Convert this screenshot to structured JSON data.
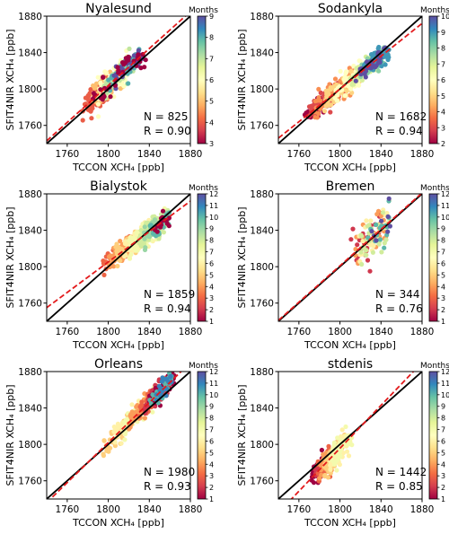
{
  "figure": {
    "colorbar_title": "Months",
    "colormap": "Spectral",
    "identity_line_color": "#000000",
    "regression_line_color": "#e31a1c"
  },
  "chart_data": [
    {
      "type": "scatter",
      "title": "Nyalesund",
      "xlabel": "TCCON XCH₄ [ppb]",
      "ylabel": "SFIT4NIR  XCH₄ [ppb]",
      "xlim": [
        1740,
        1880
      ],
      "ylim": [
        1740,
        1880
      ],
      "xticks": [
        "1760",
        "1800",
        "1840",
        "1880"
      ],
      "yticks": [
        "1760",
        "1800",
        "1840",
        "1880"
      ],
      "stats": {
        "n": "N = 825",
        "r": "R = 0.90"
      },
      "colorbar": {
        "min": 3,
        "max": 9,
        "ticks": [
          "3",
          "4",
          "5",
          "6",
          "7",
          "8",
          "9"
        ]
      },
      "regression": {
        "x": [
          1740,
          1880
        ],
        "y": [
          1743,
          1885
        ]
      },
      "clusters": [
        {
          "month": 4,
          "count": 70,
          "x0": 1775,
          "x1": 1800,
          "spread": 8
        },
        {
          "month": 5,
          "count": 90,
          "x0": 1785,
          "x1": 1815,
          "spread": 7
        },
        {
          "month": 6,
          "count": 120,
          "x0": 1790,
          "x1": 1820,
          "spread": 7
        },
        {
          "month": 7,
          "count": 40,
          "x0": 1795,
          "x1": 1825,
          "spread": 7
        },
        {
          "month": 8,
          "count": 40,
          "x0": 1800,
          "x1": 1832,
          "spread": 6
        },
        {
          "month": 9,
          "count": 30,
          "x0": 1805,
          "x1": 1835,
          "spread": 6
        },
        {
          "month": 3,
          "count": 40,
          "x0": 1785,
          "x1": 1838,
          "spread": 6
        }
      ]
    },
    {
      "type": "scatter",
      "title": "Sodankyla",
      "xlabel": "TCCON XCH₄ [ppb]",
      "ylabel": "SFIT4NIR XCH₄ [ppb]",
      "xlim": [
        1740,
        1880
      ],
      "ylim": [
        1740,
        1880
      ],
      "xticks": [
        "1760",
        "1800",
        "1840",
        "1880"
      ],
      "yticks": [
        "1760",
        "1800",
        "1840",
        "1880"
      ],
      "stats": {
        "n": "N = 1682",
        "r": "R = 0.94"
      },
      "colorbar": {
        "min": 2,
        "max": 10,
        "ticks": [
          "2",
          "3",
          "4",
          "5",
          "6",
          "7",
          "8",
          "9",
          "10"
        ]
      },
      "regression": {
        "x": [
          1740,
          1880
        ],
        "y": [
          1746,
          1872
        ]
      },
      "clusters": [
        {
          "month": 2,
          "count": 50,
          "x0": 1765,
          "x1": 1800,
          "spread": 6
        },
        {
          "month": 3,
          "count": 70,
          "x0": 1770,
          "x1": 1805,
          "spread": 6
        },
        {
          "month": 4,
          "count": 80,
          "x0": 1775,
          "x1": 1815,
          "spread": 6
        },
        {
          "month": 5,
          "count": 80,
          "x0": 1785,
          "x1": 1820,
          "spread": 6
        },
        {
          "month": 6,
          "count": 70,
          "x0": 1795,
          "x1": 1825,
          "spread": 6
        },
        {
          "month": 7,
          "count": 60,
          "x0": 1810,
          "x1": 1835,
          "spread": 5
        },
        {
          "month": 8,
          "count": 70,
          "x0": 1820,
          "x1": 1845,
          "spread": 5
        },
        {
          "month": 9,
          "count": 60,
          "x0": 1820,
          "x1": 1848,
          "spread": 5
        },
        {
          "month": 10,
          "count": 30,
          "x0": 1815,
          "x1": 1845,
          "spread": 5
        }
      ]
    },
    {
      "type": "scatter",
      "title": "Bialystok",
      "xlabel": "TCCON XCH₄ [ppb]",
      "ylabel": "SFIT4NIR  XCH₄ [ppb]",
      "xlim": [
        1740,
        1880
      ],
      "ylim": [
        1740,
        1880
      ],
      "xticks": [
        "1760",
        "1800",
        "1840",
        "1880"
      ],
      "yticks": [
        "1760",
        "1800",
        "1840",
        "1880"
      ],
      "stats": {
        "n": "N = 1859",
        "r": "R = 0.94"
      },
      "colorbar": {
        "min": 1,
        "max": 12,
        "ticks": [
          "1",
          "2",
          "3",
          "4",
          "5",
          "6",
          "7",
          "8",
          "9",
          "10",
          "11",
          "12"
        ]
      },
      "regression": {
        "x": [
          1740,
          1880
        ],
        "y": [
          1755,
          1872
        ]
      },
      "clusters": [
        {
          "month": 3,
          "count": 50,
          "x0": 1795,
          "x1": 1825,
          "spread": 6
        },
        {
          "month": 4,
          "count": 60,
          "x0": 1800,
          "x1": 1830,
          "spread": 6
        },
        {
          "month": 5,
          "count": 60,
          "x0": 1805,
          "x1": 1835,
          "spread": 6
        },
        {
          "month": 6,
          "count": 80,
          "x0": 1815,
          "x1": 1845,
          "spread": 6
        },
        {
          "month": 7,
          "count": 90,
          "x0": 1820,
          "x1": 1855,
          "spread": 6
        },
        {
          "month": 8,
          "count": 80,
          "x0": 1830,
          "x1": 1858,
          "spread": 6
        },
        {
          "month": 9,
          "count": 40,
          "x0": 1835,
          "x1": 1860,
          "spread": 5
        },
        {
          "month": 10,
          "count": 25,
          "x0": 1840,
          "x1": 1860,
          "spread": 5
        },
        {
          "month": 1,
          "count": 15,
          "x0": 1845,
          "x1": 1860,
          "spread": 6
        }
      ]
    },
    {
      "type": "scatter",
      "title": "Bremen",
      "xlabel": "TCCON XCH₄ [ppb]",
      "ylabel": "SFIT4NIR XCH₄ [ppb]",
      "xlim": [
        1740,
        1880
      ],
      "ylim": [
        1740,
        1880
      ],
      "xticks": [
        "1760",
        "1800",
        "1840",
        "1880"
      ],
      "yticks": [
        "1760",
        "1800",
        "1840",
        "1880"
      ],
      "stats": {
        "n": "N = 344",
        "r": "R = 0.76"
      },
      "colorbar": {
        "min": 1,
        "max": 12,
        "ticks": [
          "1",
          "2",
          "3",
          "4",
          "5",
          "6",
          "7",
          "8",
          "9",
          "10",
          "11",
          "12"
        ]
      },
      "regression": {
        "x": [
          1740,
          1880
        ],
        "y": [
          1741,
          1881
        ]
      },
      "clusters": [
        {
          "month": 2,
          "count": 25,
          "x0": 1810,
          "x1": 1840,
          "spread": 12
        },
        {
          "month": 4,
          "count": 30,
          "x0": 1815,
          "x1": 1845,
          "spread": 12
        },
        {
          "month": 6,
          "count": 30,
          "x0": 1818,
          "x1": 1848,
          "spread": 12
        },
        {
          "month": 8,
          "count": 30,
          "x0": 1820,
          "x1": 1848,
          "spread": 12
        },
        {
          "month": 10,
          "count": 15,
          "x0": 1825,
          "x1": 1850,
          "spread": 10
        },
        {
          "month": 12,
          "count": 8,
          "x0": 1830,
          "x1": 1850,
          "spread": 10
        }
      ]
    },
    {
      "type": "scatter",
      "title": "Orleans",
      "xlabel": "TCCON XCH₄ [ppb]",
      "ylabel": "SFIT4NIR  XCH₄ [ppb]",
      "xlim": [
        1740,
        1880
      ],
      "ylim": [
        1740,
        1880
      ],
      "xticks": [
        "1760",
        "1800",
        "1840",
        "1880"
      ],
      "yticks": [
        "1760",
        "1800",
        "1840",
        "1880"
      ],
      "stats": {
        "n": "N = 1980",
        "r": "R = 0.93"
      },
      "colorbar": {
        "min": 1,
        "max": 12,
        "ticks": [
          "1",
          "2",
          "3",
          "4",
          "5",
          "6",
          "7",
          "8",
          "9",
          "10",
          "11",
          "12"
        ]
      },
      "regression": {
        "x": [
          1740,
          1880
        ],
        "y": [
          1736,
          1890
        ]
      },
      "clusters": [
        {
          "month": 5,
          "count": 40,
          "x0": 1795,
          "x1": 1825,
          "spread": 6
        },
        {
          "month": 6,
          "count": 60,
          "x0": 1805,
          "x1": 1835,
          "spread": 6
        },
        {
          "month": 7,
          "count": 60,
          "x0": 1815,
          "x1": 1845,
          "spread": 6
        },
        {
          "month": 4,
          "count": 60,
          "x0": 1820,
          "x1": 1850,
          "spread": 6
        },
        {
          "month": 3,
          "count": 70,
          "x0": 1830,
          "x1": 1858,
          "spread": 6
        },
        {
          "month": 2,
          "count": 60,
          "x0": 1835,
          "x1": 1862,
          "spread": 6
        },
        {
          "month": 1,
          "count": 40,
          "x0": 1840,
          "x1": 1865,
          "spread": 5
        },
        {
          "month": 10,
          "count": 30,
          "x0": 1840,
          "x1": 1862,
          "spread": 5
        },
        {
          "month": 11,
          "count": 20,
          "x0": 1845,
          "x1": 1862,
          "spread": 5
        }
      ]
    },
    {
      "type": "scatter",
      "title": "stdenis",
      "xlabel": "TCCON XCH₄ [ppb]",
      "ylabel": "SFIT4NIR XCH₄ [ppb]",
      "xlim": [
        1740,
        1880
      ],
      "ylim": [
        1740,
        1880
      ],
      "xticks": [
        "1760",
        "1800",
        "1840",
        "1880"
      ],
      "yticks": [
        "1760",
        "1800",
        "1840",
        "1880"
      ],
      "stats": {
        "n": "N = 1442",
        "r": "R = 0.85"
      },
      "colorbar": {
        "min": 1,
        "max": 12,
        "ticks": [
          "1",
          "2",
          "3",
          "4",
          "5",
          "6",
          "7",
          "8",
          "9",
          "10",
          "11",
          "12"
        ]
      },
      "regression": {
        "x": [
          1740,
          1880
        ],
        "y": [
          1725,
          1890
        ]
      },
      "clusters": [
        {
          "month": 1,
          "count": 40,
          "x0": 1772,
          "x1": 1790,
          "spread": 6
        },
        {
          "month": 2,
          "count": 40,
          "x0": 1775,
          "x1": 1793,
          "spread": 6
        },
        {
          "month": 3,
          "count": 40,
          "x0": 1778,
          "x1": 1796,
          "spread": 6
        },
        {
          "month": 4,
          "count": 40,
          "x0": 1780,
          "x1": 1798,
          "spread": 6
        },
        {
          "month": 5,
          "count": 60,
          "x0": 1785,
          "x1": 1805,
          "spread": 7
        },
        {
          "month": 6,
          "count": 60,
          "x0": 1790,
          "x1": 1810,
          "spread": 7
        },
        {
          "month": 7,
          "count": 50,
          "x0": 1792,
          "x1": 1812,
          "spread": 6
        }
      ]
    }
  ]
}
